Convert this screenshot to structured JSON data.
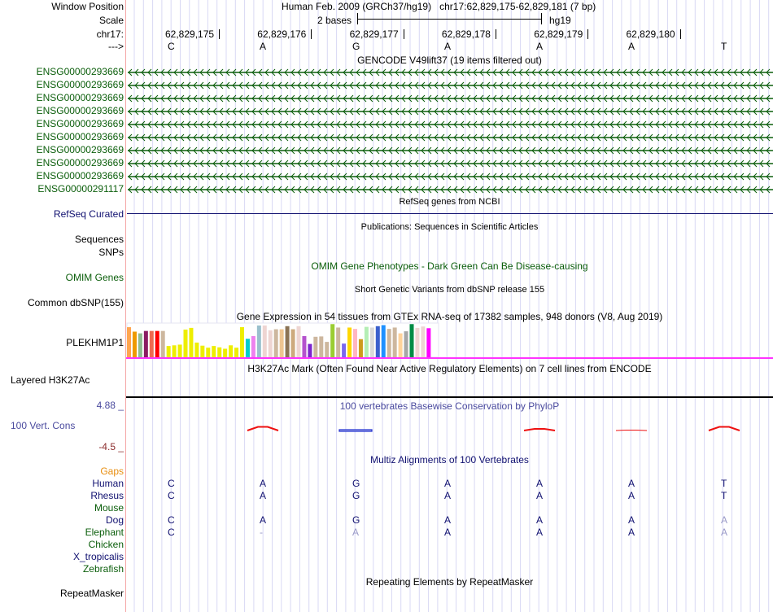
{
  "header": {
    "window_position_label": "Window Position",
    "scale_label": "Scale",
    "chrom_label": "chr17:",
    "strand_label": "--->",
    "assembly_title": "Human Feb. 2009 (GRCh37/hg19)   chr17:62,829,175-62,829,181 (7 bp)",
    "scale_text": "2 bases",
    "scale_db": "hg19",
    "positions": [
      "62,829,175",
      "62,829,176",
      "62,829,177",
      "62,829,178",
      "62,829,179",
      "62,829,180"
    ],
    "bases": [
      "C",
      "A",
      "G",
      "A",
      "A",
      "A",
      "T"
    ]
  },
  "gencode": {
    "title": "GENCODE V49lift37 (19 items filtered out)",
    "genes": [
      "ENSG00000293669",
      "ENSG00000293669",
      "ENSG00000293669",
      "ENSG00000293669",
      "ENSG00000293669",
      "ENSG00000293669",
      "ENSG00000293669",
      "ENSG00000293669",
      "ENSG00000293669",
      "ENSG00000291117"
    ],
    "strand": "minus",
    "color": "#0b5e0b"
  },
  "refseq": {
    "title": "RefSeq genes from NCBI",
    "label": "RefSeq Curated",
    "color": "#101070"
  },
  "publications": {
    "title": "Publications: Sequences in Scientific Articles",
    "labels": [
      "Sequences",
      "SNPs"
    ]
  },
  "omim": {
    "title": "OMIM Gene Phenotypes - Dark Green Can Be Disease-causing",
    "label": "OMIM Genes"
  },
  "dbsnp": {
    "title": "Short Genetic Variants from dbSNP release 155",
    "label": "Common dbSNP(155)"
  },
  "gtex": {
    "title": "Gene Expression in 54 tissues from GTEx RNA-seq of 17382 samples, 948 donors (V8, Aug 2019)",
    "label": "PLEKHM1P1",
    "bar_colors": [
      "#ffa54f",
      "#ee9a00",
      "#8fbc8f",
      "#8b1c62",
      "#ee6a50",
      "#ff0000",
      "#cdb79e",
      "#eeee00",
      "#eeee00",
      "#eeee00",
      "#eeee00",
      "#eeee00",
      "#eeee00",
      "#eeee00",
      "#eeee00",
      "#eeee00",
      "#eeee00",
      "#eeee00",
      "#eeee00",
      "#eeee00",
      "#eeee00",
      "#00cdcd",
      "#ee82ee",
      "#9ac0cd",
      "#eed5d2",
      "#eed5d2",
      "#cdb79e",
      "#eec591",
      "#8b7355",
      "#cdaa7d",
      "#eed5d2",
      "#b452cd",
      "#7d26cd",
      "#cdb79e",
      "#cdb79e",
      "#cdb79e",
      "#9acd32",
      "#cdb79e",
      "#7a67ee",
      "#ffd700",
      "#ffb6c1",
      "#cd9b1d",
      "#b4eeb4",
      "#d9d9d9",
      "#3a5fcd",
      "#1e90ff",
      "#cdb79e",
      "#cdb79e",
      "#ffd39b",
      "#a6a6a6",
      "#008b45",
      "#eed5d2",
      "#eed5d2",
      "#ff00ff"
    ],
    "bar_values": [
      0.88,
      0.75,
      0.7,
      0.77,
      0.77,
      0.77,
      0.77,
      0.33,
      0.35,
      0.37,
      0.81,
      0.86,
      0.43,
      0.34,
      0.28,
      0.33,
      0.29,
      0.25,
      0.35,
      0.28,
      0.88,
      0.54,
      0.62,
      0.93,
      0.93,
      0.79,
      0.82,
      0.82,
      0.91,
      0.82,
      0.91,
      0.62,
      0.39,
      0.6,
      0.61,
      0.45,
      0.97,
      0.87,
      0.4,
      0.87,
      0.83,
      0.53,
      0.89,
      0.87,
      0.91,
      0.94,
      0.83,
      0.87,
      0.7,
      0.76,
      0.97,
      0.86,
      0.9,
      0.85
    ]
  },
  "h3k27ac": {
    "title": "H3K27Ac Mark (Often Found Near Active Regulatory Elements) on 7 cell lines from ENCODE",
    "label": "Layered H3K27Ac"
  },
  "phylop": {
    "title": "100 vertebrates Basewise Conservation by PhyloP",
    "label": "100 Vert. Cons",
    "max_label": "4.88 _",
    "min_label": "-4.5 _",
    "values": [
      0.45,
      -0.2,
      0.0,
      0.15,
      0.05,
      0.45
    ]
  },
  "multiz": {
    "title": "Multiz Alignments of 100 Vertebrates",
    "gaps_label": "Gaps",
    "species": [
      {
        "name": "Human",
        "color": "navy",
        "seq": [
          "C",
          "A",
          "G",
          "A",
          "A",
          "A",
          "T"
        ],
        "light": [
          false,
          false,
          false,
          false,
          false,
          false,
          false
        ]
      },
      {
        "name": "Rhesus",
        "color": "navy",
        "seq": [
          "C",
          "A",
          "G",
          "A",
          "A",
          "A",
          "T"
        ],
        "light": [
          false,
          false,
          false,
          false,
          false,
          false,
          false
        ]
      },
      {
        "name": "Mouse",
        "color": "green",
        "seq": [
          "",
          "",
          "",
          "",
          "",
          "",
          ""
        ],
        "light": [
          false,
          false,
          false,
          false,
          false,
          false,
          false
        ]
      },
      {
        "name": "Dog",
        "color": "navy",
        "seq": [
          "C",
          "A",
          "G",
          "A",
          "A",
          "A",
          "A"
        ],
        "light": [
          false,
          false,
          false,
          false,
          false,
          false,
          true
        ]
      },
      {
        "name": "Elephant",
        "color": "green",
        "seq": [
          "C",
          "-",
          "A",
          "A",
          "A",
          "A",
          "A"
        ],
        "light": [
          false,
          true,
          true,
          false,
          false,
          false,
          true
        ]
      },
      {
        "name": "Chicken",
        "color": "green",
        "seq": [
          "",
          "",
          "",
          "",
          "",
          "",
          ""
        ],
        "light": [
          false,
          false,
          false,
          false,
          false,
          false,
          false
        ]
      },
      {
        "name": "X_tropicalis",
        "color": "navy",
        "seq": [
          "",
          "",
          "",
          "",
          "",
          "",
          ""
        ],
        "light": [
          false,
          false,
          false,
          false,
          false,
          false,
          false
        ]
      },
      {
        "name": "Zebrafish",
        "color": "green",
        "seq": [
          "",
          "",
          "",
          "",
          "",
          "",
          ""
        ],
        "light": [
          false,
          false,
          false,
          false,
          false,
          false,
          false
        ]
      }
    ]
  },
  "repeatmasker": {
    "title": "Repeating Elements by RepeatMasker",
    "label": "RepeatMasker"
  }
}
